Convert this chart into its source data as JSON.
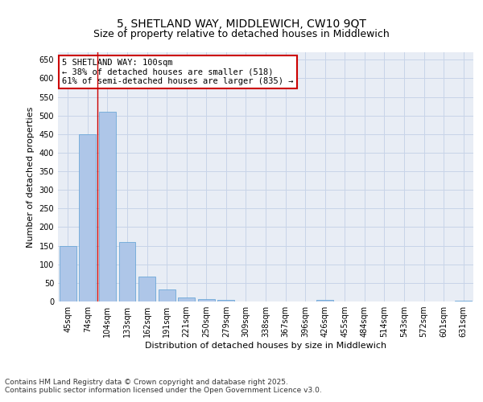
{
  "title_line1": "5, SHETLAND WAY, MIDDLEWICH, CW10 9QT",
  "title_line2": "Size of property relative to detached houses in Middlewich",
  "xlabel": "Distribution of detached houses by size in Middlewich",
  "ylabel": "Number of detached properties",
  "categories": [
    "45sqm",
    "74sqm",
    "104sqm",
    "133sqm",
    "162sqm",
    "191sqm",
    "221sqm",
    "250sqm",
    "279sqm",
    "309sqm",
    "338sqm",
    "367sqm",
    "396sqm",
    "426sqm",
    "455sqm",
    "484sqm",
    "514sqm",
    "543sqm",
    "572sqm",
    "601sqm",
    "631sqm"
  ],
  "values": [
    150,
    450,
    510,
    160,
    68,
    32,
    11,
    6,
    4,
    0,
    0,
    0,
    0,
    5,
    0,
    0,
    0,
    0,
    0,
    0,
    3
  ],
  "bar_color": "#aec6e8",
  "bar_edge_color": "#5a9fd4",
  "vline_x_index": 2,
  "vline_color": "#cc0000",
  "annotation_text": "5 SHETLAND WAY: 100sqm\n← 38% of detached houses are smaller (518)\n61% of semi-detached houses are larger (835) →",
  "annotation_box_color": "#cc0000",
  "annotation_bg": "#ffffff",
  "ylim": [
    0,
    670
  ],
  "yticks": [
    0,
    50,
    100,
    150,
    200,
    250,
    300,
    350,
    400,
    450,
    500,
    550,
    600,
    650
  ],
  "grid_color": "#c8d4e8",
  "bg_color": "#e8edf5",
  "footer_line1": "Contains HM Land Registry data © Crown copyright and database right 2025.",
  "footer_line2": "Contains public sector information licensed under the Open Government Licence v3.0.",
  "title_fontsize": 10,
  "subtitle_fontsize": 9,
  "axis_label_fontsize": 8,
  "tick_fontsize": 7,
  "annotation_fontsize": 7.5,
  "footer_fontsize": 6.5
}
